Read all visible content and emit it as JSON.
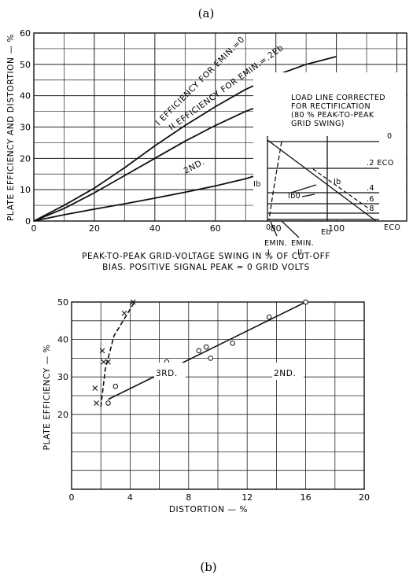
{
  "chart_data": [
    {
      "panel_label": "(a)",
      "type": "line",
      "ylabel": "PLATE EFFICIENCY AND DISTORTION — %",
      "xlabel_line1": "PEAK-TO-PEAK GRID-VOLTAGE SWING IN % OF CUT-OFF",
      "xlabel_line2": "BIAS. POSITIVE SIGNAL PEAK = 0 GRID VOLTS",
      "xlim": [
        0,
        100
      ],
      "ylim": [
        0,
        60
      ],
      "x_ticks": [
        "0",
        "20",
        "40",
        "60",
        "80",
        "100"
      ],
      "y_ticks": [
        "0",
        "10",
        "20",
        "30",
        "40",
        "50",
        "60"
      ],
      "grid": true,
      "series": [
        {
          "name": "I EFFICIENCY FOR EMIN.=0",
          "x": [
            0,
            10,
            20,
            30,
            40,
            50,
            60,
            70,
            80,
            90,
            100
          ],
          "y": [
            0,
            5,
            10.5,
            17,
            24,
            30.5,
            36.5,
            42,
            46.5,
            50,
            52.5
          ]
        },
        {
          "name": "II EFFICIENCY FOR EMIN.=.2Eb",
          "x": [
            0,
            10,
            20,
            30,
            40,
            50,
            60,
            70,
            80,
            90,
            100
          ],
          "y": [
            0,
            4,
            9,
            14.5,
            20,
            25.5,
            30.5,
            35,
            38.5,
            41,
            43
          ]
        },
        {
          "name": "2ND.",
          "x": [
            0,
            10,
            20,
            30,
            40,
            50,
            60,
            70,
            80,
            90,
            100
          ],
          "y": [
            0,
            2,
            3.8,
            5.5,
            7.3,
            9.2,
            11.2,
            13.5,
            16.5,
            20,
            24.5
          ]
        }
      ],
      "inset": {
        "title_lines": [
          "LOAD LINE CORRECTED",
          "FOR RECTIFICATION",
          "(80 % PEAK-TO-PEAK",
          "GRID SWING)"
        ],
        "curve_labels": [
          "0",
          ".2 ECO",
          ".4",
          ".6",
          ".8",
          "ECO"
        ],
        "labels": {
          "ib_axis": "Ib",
          "ib": "Ib",
          "ib0": "Ib0",
          "origin": "0",
          "eb": "Eb",
          "emin1_name": "EMIN.",
          "emin1_num": "I",
          "emin2_name": "EMIN.",
          "emin2_num": "II"
        }
      }
    },
    {
      "panel_label": "(b)",
      "type": "scatter",
      "ylabel": "PLATE EFFICIENCY — %",
      "xlabel": "DISTORTION — %",
      "xlim": [
        0,
        20
      ],
      "ylim": [
        0,
        50
      ],
      "x_ticks": [
        "0",
        "4",
        "8",
        "12",
        "16",
        "20"
      ],
      "y_ticks": [
        "20",
        "30",
        "40",
        "50"
      ],
      "grid": true,
      "series": [
        {
          "name": "2ND.",
          "marker": "o",
          "points": [
            [
              2.5,
              23
            ],
            [
              3,
              27.5
            ],
            [
              6.5,
              34
            ],
            [
              8.7,
              37
            ],
            [
              9.2,
              38
            ],
            [
              9.5,
              35
            ],
            [
              11,
              39
            ],
            [
              13.5,
              46
            ],
            [
              16,
              50
            ]
          ],
          "fit_line": [
            [
              2.5,
              24
            ],
            [
              16,
              50
            ]
          ]
        },
        {
          "name": "3RD.",
          "marker": "x",
          "points": [
            [
              1.6,
              27
            ],
            [
              1.7,
              23
            ],
            [
              2.1,
              37
            ],
            [
              2.2,
              34
            ],
            [
              2.5,
              34
            ],
            [
              3.6,
              47
            ],
            [
              4.2,
              50
            ]
          ],
          "fit_line": [
            [
              2,
              22
            ],
            [
              2.3,
              32
            ],
            [
              2.9,
              41
            ],
            [
              4.3,
              50
            ]
          ]
        }
      ]
    }
  ]
}
